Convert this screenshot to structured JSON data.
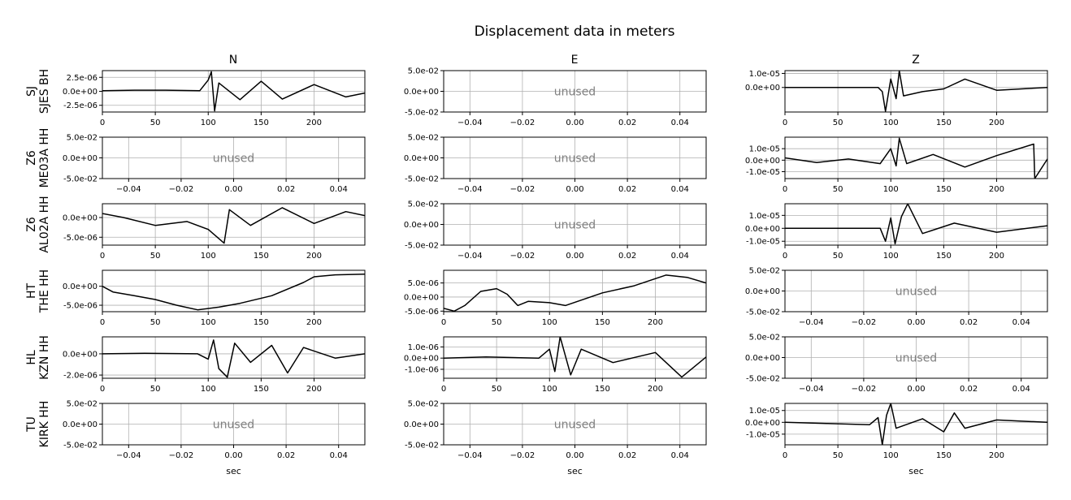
{
  "figure": {
    "title": "Displacement data in meters",
    "columns": [
      "N",
      "E",
      "Z"
    ],
    "xlabel": "sec",
    "unused_label": "unused"
  },
  "colors": {
    "trace": "#000000",
    "grid": "#b0b0b0",
    "unused_text": "#808080",
    "axes": "#000000"
  },
  "rows": [
    {
      "label": [
        "SJ",
        "SJES BH"
      ]
    },
    {
      "label": [
        "Z6",
        "ME03A HH"
      ]
    },
    {
      "label": [
        "Z6",
        "AL02A HH"
      ]
    },
    {
      "label": [
        "HT",
        "THE HH"
      ]
    },
    {
      "label": [
        "HL",
        "KZN HH"
      ]
    },
    {
      "label": [
        "TU",
        "KIRK HH"
      ]
    }
  ],
  "chart_data": [
    {
      "type": "line",
      "row": 0,
      "col": 0,
      "unused": false,
      "xlim": [
        0,
        248
      ],
      "ylim": [
        -3.7e-06,
        3.7e-06
      ],
      "xticks": [
        0,
        50,
        100,
        150,
        200
      ],
      "xtick_labels": [
        "0",
        "50",
        "100",
        "150",
        "200"
      ],
      "yticks": [
        2.5e-06,
        0,
        -2.5e-06
      ],
      "ytick_labels": [
        "2.5e-06",
        "0.0e+00",
        "-2.5e-06"
      ],
      "series": [
        {
          "x": [
            0,
            30,
            60,
            92,
            100,
            103,
            106,
            110,
            130,
            150,
            170,
            200,
            230,
            248
          ],
          "y": [
            1e-07,
            2e-07,
            2e-07,
            1e-07,
            2e-06,
            3.5e-06,
            -3.5e-06,
            1.5e-06,
            -1.5e-06,
            1.8e-06,
            -1.4e-06,
            1.2e-06,
            -1e-06,
            -3e-07
          ]
        }
      ]
    },
    {
      "type": "line",
      "row": 0,
      "col": 1,
      "unused": true,
      "xlim": [
        -0.05,
        0.05
      ],
      "ylim": [
        -0.05,
        0.05
      ],
      "xticks": [
        -0.04,
        -0.02,
        0,
        0.02,
        0.04
      ],
      "xtick_labels": [
        "−0.04",
        "−0.02",
        "0.00",
        "0.02",
        "0.04"
      ],
      "yticks": [
        0.05,
        0,
        -0.05
      ],
      "ytick_labels": [
        "5.0e-02",
        "0.0e+00",
        "-5.0e-02"
      ]
    },
    {
      "type": "line",
      "row": 0,
      "col": 2,
      "unused": false,
      "xlim": [
        0,
        248
      ],
      "ylim": [
        -1.75e-05,
        1.2e-05
      ],
      "xticks": [
        0,
        50,
        100,
        150,
        200
      ],
      "xtick_labels": [
        "0",
        "50",
        "100",
        "150",
        "200"
      ],
      "yticks": [
        1e-05,
        0
      ],
      "ytick_labels": [
        "1.0e-05",
        "0.0e+00"
      ],
      "series": [
        {
          "x": [
            0,
            40,
            88,
            92,
            95,
            100,
            105,
            108,
            112,
            130,
            150,
            170,
            200,
            248
          ],
          "y": [
            0,
            0,
            0,
            -3e-06,
            -1.7e-05,
            6e-06,
            -8e-06,
            1.2e-05,
            -6e-06,
            -3e-06,
            -1e-06,
            6e-06,
            -2e-06,
            0
          ]
        }
      ]
    },
    {
      "type": "line",
      "row": 1,
      "col": 0,
      "unused": true,
      "xlim": [
        -0.05,
        0.05
      ],
      "ylim": [
        -0.05,
        0.05
      ],
      "xticks": [
        -0.04,
        -0.02,
        0,
        0.02,
        0.04
      ],
      "xtick_labels": [
        "−0.04",
        "−0.02",
        "0.00",
        "0.02",
        "0.04"
      ],
      "yticks": [
        0.05,
        0,
        -0.05
      ],
      "ytick_labels": [
        "5.0e-02",
        "0.0e+00",
        "-5.0e-02"
      ]
    },
    {
      "type": "line",
      "row": 1,
      "col": 1,
      "unused": true,
      "xlim": [
        -0.05,
        0.05
      ],
      "ylim": [
        -0.05,
        0.05
      ],
      "xticks": [
        -0.04,
        -0.02,
        0,
        0.02,
        0.04
      ],
      "xtick_labels": [
        "−0.04",
        "−0.02",
        "0.00",
        "0.02",
        "0.04"
      ],
      "yticks": [
        0.05,
        0,
        -0.05
      ],
      "ytick_labels": [
        "5.0e-02",
        "0.0e+00",
        "-5.0e-02"
      ]
    },
    {
      "type": "line",
      "row": 1,
      "col": 2,
      "unused": false,
      "xlim": [
        0,
        248
      ],
      "ylim": [
        -1.6e-05,
        2e-05
      ],
      "xticks": [
        0,
        50,
        100,
        150,
        200
      ],
      "xtick_labels": [
        "0",
        "50",
        "100",
        "150",
        "200"
      ],
      "yticks": [
        1e-05,
        0,
        -1e-05
      ],
      "ytick_labels": [
        "1.0e-05",
        "0.0e+00",
        "-1.0e-05"
      ],
      "series": [
        {
          "x": [
            0,
            30,
            60,
            90,
            100,
            105,
            108,
            115,
            140,
            170,
            200,
            235,
            236,
            248
          ],
          "y": [
            2e-06,
            -2e-06,
            1e-06,
            -3e-06,
            1e-05,
            -5e-06,
            1.9e-05,
            -3e-06,
            5e-06,
            -6e-06,
            4e-06,
            1.4e-05,
            -1.6e-05,
            1e-06
          ]
        }
      ]
    },
    {
      "type": "line",
      "row": 2,
      "col": 0,
      "unused": false,
      "xlim": [
        0,
        248
      ],
      "ylim": [
        -7e-06,
        3.5e-06
      ],
      "xticks": [
        0,
        50,
        100,
        150,
        200
      ],
      "xtick_labels": [
        "0",
        "50",
        "100",
        "150",
        "200"
      ],
      "yticks": [
        0,
        -5e-06
      ],
      "ytick_labels": [
        "0.0e+00",
        "-5.0e-06"
      ],
      "series": [
        {
          "x": [
            0,
            20,
            50,
            80,
            100,
            115,
            120,
            140,
            170,
            200,
            230,
            248
          ],
          "y": [
            1e-06,
            0,
            -2e-06,
            -1e-06,
            -3e-06,
            -6.5e-06,
            2e-06,
            -2e-06,
            2.5e-06,
            -1.5e-06,
            1.5e-06,
            5e-07
          ]
        }
      ]
    },
    {
      "type": "line",
      "row": 2,
      "col": 1,
      "unused": true,
      "xlim": [
        -0.05,
        0.05
      ],
      "ylim": [
        -0.05,
        0.05
      ],
      "xticks": [
        -0.04,
        -0.02,
        0,
        0.02,
        0.04
      ],
      "xtick_labels": [
        "−0.04",
        "−0.02",
        "0.00",
        "0.02",
        "0.04"
      ],
      "yticks": [
        0.05,
        0,
        -0.05
      ],
      "ytick_labels": [
        "5.0e-02",
        "0.0e+00",
        "-5.0e-02"
      ]
    },
    {
      "type": "line",
      "row": 2,
      "col": 2,
      "unused": false,
      "xlim": [
        0,
        248
      ],
      "ylim": [
        -1.3e-05,
        1.9e-05
      ],
      "xticks": [
        0,
        50,
        100,
        150,
        200
      ],
      "xtick_labels": [
        "0",
        "50",
        "100",
        "150",
        "200"
      ],
      "yticks": [
        1e-05,
        0,
        -1e-05
      ],
      "ytick_labels": [
        "1.0e-05",
        "0.0e+00",
        "-1.0e-05"
      ],
      "series": [
        {
          "x": [
            0,
            40,
            90,
            95,
            100,
            104,
            110,
            116,
            130,
            160,
            200,
            248
          ],
          "y": [
            0,
            0,
            0,
            -1e-05,
            8e-06,
            -1.2e-05,
            9e-06,
            1.9e-05,
            -4e-06,
            4e-06,
            -3e-06,
            2e-06
          ]
        }
      ]
    },
    {
      "type": "line",
      "row": 3,
      "col": 0,
      "unused": false,
      "xlim": [
        0,
        248
      ],
      "ylim": [
        -6.7e-06,
        4.2e-06
      ],
      "xticks": [
        0,
        50,
        100,
        150,
        200
      ],
      "xtick_labels": [
        "0",
        "50",
        "100",
        "150",
        "200"
      ],
      "yticks": [
        0,
        -5e-06
      ],
      "ytick_labels": [
        "0.0e+00",
        "-5.0e-06"
      ],
      "series": [
        {
          "x": [
            0,
            10,
            30,
            50,
            70,
            90,
            110,
            130,
            160,
            190,
            200,
            220,
            248
          ],
          "y": [
            0,
            -1.5e-06,
            -2.5e-06,
            -3.5e-06,
            -5e-06,
            -6.2e-06,
            -5.5e-06,
            -4.5e-06,
            -2.5e-06,
            1e-06,
            2.5e-06,
            3e-06,
            3.2e-06
          ]
        }
      ]
    },
    {
      "type": "line",
      "row": 3,
      "col": 1,
      "unused": false,
      "xlim": [
        0,
        248
      ],
      "ylim": [
        -5.2e-06,
        9.5e-06
      ],
      "xticks": [
        0,
        50,
        100,
        150,
        200
      ],
      "xtick_labels": [
        "0",
        "50",
        "100",
        "150",
        "200"
      ],
      "yticks": [
        5e-06,
        0,
        -5e-06
      ],
      "ytick_labels": [
        "5.0e-06",
        "0.0e+00",
        "-5.0e-06"
      ],
      "series": [
        {
          "x": [
            0,
            10,
            20,
            35,
            50,
            60,
            70,
            80,
            100,
            115,
            150,
            180,
            210,
            230,
            248
          ],
          "y": [
            -4e-06,
            -5e-06,
            -3e-06,
            2e-06,
            3e-06,
            1e-06,
            -3e-06,
            -1.5e-06,
            -2e-06,
            -3e-06,
            1.5e-06,
            4e-06,
            7.8e-06,
            7e-06,
            5e-06
          ]
        }
      ]
    },
    {
      "type": "line",
      "row": 3,
      "col": 2,
      "unused": true,
      "xlim": [
        -0.05,
        0.05
      ],
      "ylim": [
        -0.05,
        0.05
      ],
      "xticks": [
        -0.04,
        -0.02,
        0,
        0.02,
        0.04
      ],
      "xtick_labels": [
        "−0.04",
        "−0.02",
        "0.00",
        "0.02",
        "0.04"
      ],
      "yticks": [
        0.05,
        0,
        -0.05
      ],
      "ytick_labels": [
        "5.0e-02",
        "0.0e+00",
        "-5.0e-02"
      ]
    },
    {
      "type": "line",
      "row": 4,
      "col": 0,
      "unused": false,
      "xlim": [
        0,
        248
      ],
      "ylim": [
        -2.3e-06,
        1.6e-06
      ],
      "xticks": [
        0,
        50,
        100,
        150,
        200
      ],
      "xtick_labels": [
        "0",
        "50",
        "100",
        "150",
        "200"
      ],
      "yticks": [
        0,
        -2e-06
      ],
      "ytick_labels": [
        "0.0e+00",
        "-2.0e-06"
      ],
      "series": [
        {
          "x": [
            0,
            40,
            90,
            100,
            105,
            110,
            118,
            125,
            140,
            160,
            175,
            190,
            220,
            248
          ],
          "y": [
            0,
            5e-08,
            0,
            -5e-07,
            1.3e-06,
            -1.4e-06,
            -2.2e-06,
            1e-06,
            -8e-07,
            8e-07,
            -1.8e-06,
            6e-07,
            -4e-07,
            0
          ]
        }
      ]
    },
    {
      "type": "line",
      "row": 4,
      "col": 1,
      "unused": false,
      "xlim": [
        0,
        248
      ],
      "ylim": [
        -1.8e-06,
        1.9e-06
      ],
      "xticks": [
        0,
        50,
        100,
        150,
        200
      ],
      "xtick_labels": [
        "0",
        "50",
        "100",
        "150",
        "200"
      ],
      "yticks": [
        1e-06,
        0,
        -1e-06
      ],
      "ytick_labels": [
        "1.0e-06",
        "0.0e+00",
        "-1.0e-06"
      ],
      "series": [
        {
          "x": [
            0,
            40,
            90,
            100,
            105,
            110,
            120,
            130,
            160,
            200,
            225,
            248
          ],
          "y": [
            0,
            1e-07,
            0,
            8e-07,
            -1.2e-06,
            1.9e-06,
            -1.5e-06,
            8e-07,
            -4e-07,
            5e-07,
            -1.7e-06,
            1e-07
          ]
        }
      ]
    },
    {
      "type": "line",
      "row": 4,
      "col": 2,
      "unused": true,
      "xlim": [
        -0.05,
        0.05
      ],
      "ylim": [
        -0.05,
        0.05
      ],
      "xticks": [
        -0.04,
        -0.02,
        0,
        0.02,
        0.04
      ],
      "xtick_labels": [
        "−0.04",
        "−0.02",
        "0.00",
        "0.02",
        "0.04"
      ],
      "yticks": [
        0.05,
        0,
        -0.05
      ],
      "ytick_labels": [
        "5.0e-02",
        "0.0e+00",
        "-5.0e-02"
      ]
    },
    {
      "type": "line",
      "row": 5,
      "col": 0,
      "unused": true,
      "xlim": [
        -0.05,
        0.05
      ],
      "ylim": [
        -0.05,
        0.05
      ],
      "xticks": [
        -0.04,
        -0.02,
        0,
        0.02,
        0.04
      ],
      "xtick_labels": [
        "−0.04",
        "−0.02",
        "0.00",
        "0.02",
        "0.04"
      ],
      "yticks": [
        0.05,
        0,
        -0.05
      ],
      "ytick_labels": [
        "5.0e-02",
        "0.0e+00",
        "-5.0e-02"
      ]
    },
    {
      "type": "line",
      "row": 5,
      "col": 1,
      "unused": true,
      "xlim": [
        -0.05,
        0.05
      ],
      "ylim": [
        -0.05,
        0.05
      ],
      "xticks": [
        -0.04,
        -0.02,
        0,
        0.02,
        0.04
      ],
      "xtick_labels": [
        "−0.04",
        "−0.02",
        "0.00",
        "0.02",
        "0.04"
      ],
      "yticks": [
        0.05,
        0,
        -0.05
      ],
      "ytick_labels": [
        "5.0e-02",
        "0.0e+00",
        "-5.0e-02"
      ]
    },
    {
      "type": "line",
      "row": 5,
      "col": 2,
      "unused": false,
      "xlim": [
        0,
        248
      ],
      "ylim": [
        -1.9e-05,
        1.6e-05
      ],
      "xticks": [
        0,
        50,
        100,
        150,
        200
      ],
      "xtick_labels": [
        "0",
        "50",
        "100",
        "150",
        "200"
      ],
      "yticks": [
        1e-05,
        0,
        -1e-05
      ],
      "ytick_labels": [
        "1.0e-05",
        "0.0e+00",
        "-1.0e-05"
      ],
      "series": [
        {
          "x": [
            0,
            40,
            80,
            88,
            92,
            96,
            100,
            105,
            130,
            150,
            160,
            170,
            200,
            248
          ],
          "y": [
            0,
            -1e-06,
            -2e-06,
            4e-06,
            -1.9e-05,
            6e-06,
            1.6e-05,
            -5e-06,
            3e-06,
            -8e-06,
            8e-06,
            -5e-06,
            2e-06,
            0
          ]
        }
      ]
    }
  ]
}
